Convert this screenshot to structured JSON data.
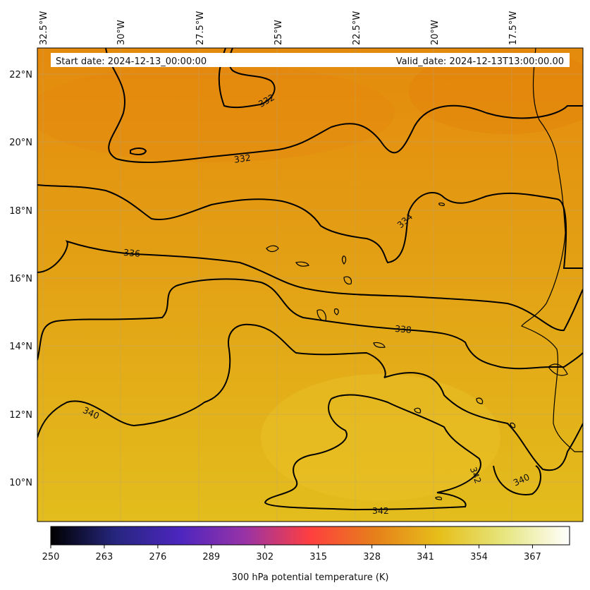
{
  "header": {
    "start_date": "Start date: 2024-12-13_00:00:00",
    "valid_date": "Valid_date: 2024-12-13T13:00:00.00"
  },
  "longitude_labels": [
    "32.5°W",
    "30°W",
    "27.5°W",
    "25°W",
    "22.5°W",
    "20°W",
    "17.5°W"
  ],
  "latitude_labels": [
    "22°N",
    "20°N",
    "18°N",
    "16°N",
    "14°N",
    "12°N",
    "10°N"
  ],
  "contour_labels": [
    "332",
    "332",
    "334",
    "336",
    "338",
    "340",
    "340",
    "342",
    "342"
  ],
  "colorbar": {
    "label": "300 hPa potential temperature (K)",
    "ticks": [
      "250",
      "263",
      "276",
      "289",
      "302",
      "315",
      "328",
      "341",
      "354",
      "367"
    ],
    "range": [
      250,
      376
    ],
    "colormap": "CMRmap",
    "stops": [
      "#000000",
      "#26267f",
      "#4d26bf",
      "#9933a6",
      "#ff3f3f",
      "#e6801a",
      "#e6bf1a",
      "#e6e680",
      "#ffffff"
    ]
  },
  "field": {
    "colors": {
      "warm_north": "#e48a0d",
      "mid": "#e3a014",
      "south": "#e3bd1d"
    }
  },
  "contour_line_color": "#000000"
}
